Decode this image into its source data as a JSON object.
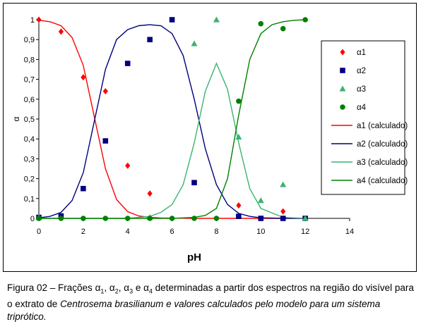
{
  "chart_data": {
    "type": "scatter",
    "xlabel": "pH",
    "ylabel": "α",
    "xlim": [
      0,
      14
    ],
    "ylim": [
      0,
      1
    ],
    "xticks": [
      "0",
      "2",
      "4",
      "6",
      "8",
      "10",
      "12",
      "14"
    ],
    "yticks": [
      "0",
      "0,1",
      "0,2",
      "0,3",
      "0,4",
      "0,5",
      "0,6",
      "0,7",
      "0,8",
      "0,9",
      "1"
    ],
    "grid": false,
    "legend_position": "right",
    "series": [
      {
        "name": "α1",
        "kind": "points",
        "marker": "diamond",
        "color": "#ff0000",
        "x": [
          0,
          1,
          2,
          3,
          4,
          5,
          9,
          11
        ],
        "y": [
          1.0,
          0.94,
          0.71,
          0.64,
          0.265,
          0.125,
          0.065,
          0.035
        ]
      },
      {
        "name": "α2",
        "kind": "points",
        "marker": "square",
        "color": "#000080",
        "x": [
          0,
          1,
          2,
          3,
          4,
          5,
          6,
          7,
          9,
          10,
          11,
          12
        ],
        "y": [
          0.005,
          0.012,
          0.15,
          0.39,
          0.78,
          0.9,
          1.0,
          0.18,
          0.01,
          0.0,
          0.0,
          0.0
        ]
      },
      {
        "name": "α3",
        "kind": "points",
        "marker": "triangle",
        "color": "#3cb371",
        "x": [
          0,
          5,
          7,
          8,
          9,
          10,
          11,
          12
        ],
        "y": [
          0.005,
          0.005,
          0.88,
          1.0,
          0.41,
          0.09,
          0.17,
          0.0
        ]
      },
      {
        "name": "α4",
        "kind": "points",
        "marker": "circle",
        "color": "#008000",
        "x": [
          0,
          1,
          2,
          3,
          4,
          5,
          6,
          7,
          8,
          9,
          10,
          11,
          12
        ],
        "y": [
          0.0,
          0.0,
          0.0,
          0.0,
          0.0,
          0.0,
          0.0,
          0.0,
          0.0,
          0.59,
          0.98,
          0.955,
          1.0
        ]
      },
      {
        "name": "a1 (calculado)",
        "kind": "line",
        "color": "#ff0000",
        "x": [
          0,
          0.5,
          1,
          1.5,
          2,
          2.5,
          3,
          3.5,
          4,
          4.5,
          5,
          5.5,
          6,
          7,
          8,
          9,
          10,
          11,
          12
        ],
        "y": [
          0.997,
          0.99,
          0.97,
          0.91,
          0.77,
          0.51,
          0.25,
          0.095,
          0.034,
          0.012,
          0.005,
          0.002,
          0.001,
          0,
          0,
          0,
          0,
          0,
          0
        ]
      },
      {
        "name": "a2 (calculado)",
        "kind": "line",
        "color": "#000080",
        "x": [
          0,
          0.5,
          1,
          1.5,
          2,
          2.5,
          3,
          3.5,
          4,
          4.5,
          5,
          5.5,
          6,
          6.5,
          7,
          7.5,
          8,
          8.5,
          9,
          9.5,
          10,
          11,
          12
        ],
        "y": [
          0.003,
          0.01,
          0.03,
          0.09,
          0.23,
          0.49,
          0.75,
          0.9,
          0.95,
          0.97,
          0.975,
          0.97,
          0.93,
          0.82,
          0.6,
          0.35,
          0.17,
          0.07,
          0.025,
          0.01,
          0.003,
          0,
          0
        ]
      },
      {
        "name": "a3 (calculado)",
        "kind": "line",
        "color": "#3cb371",
        "x": [
          0,
          4,
          5,
          5.5,
          6,
          6.5,
          7,
          7.5,
          8,
          8.5,
          9,
          9.5,
          10,
          11,
          12
        ],
        "y": [
          0,
          0,
          0.01,
          0.03,
          0.07,
          0.17,
          0.38,
          0.64,
          0.78,
          0.65,
          0.38,
          0.15,
          0.05,
          0.005,
          0
        ]
      },
      {
        "name": "a4 (calculado)",
        "kind": "line",
        "color": "#008000",
        "x": [
          0,
          6,
          7,
          7.5,
          8,
          8.5,
          9,
          9.5,
          10,
          10.5,
          11,
          11.5,
          12
        ],
        "y": [
          0,
          0,
          0.005,
          0.015,
          0.05,
          0.2,
          0.52,
          0.8,
          0.93,
          0.975,
          0.99,
          0.997,
          1.0
        ]
      }
    ]
  },
  "caption": {
    "p1": "Figura 02 – Frações ",
    "a1": "α",
    "s1": "1",
    "p2": ", ",
    "a2": "α",
    "s2": "2",
    "p3": ", ",
    "a3": "α",
    "s3": "3",
    "p4": " e ",
    "a4": "α",
    "s4": "4",
    "p5": " determinadas a partir dos espectros na região do visível para o extrato de ",
    "italic": "Centrosema brasilianum e valores calculados pelo modelo para um sistema triprótico."
  }
}
